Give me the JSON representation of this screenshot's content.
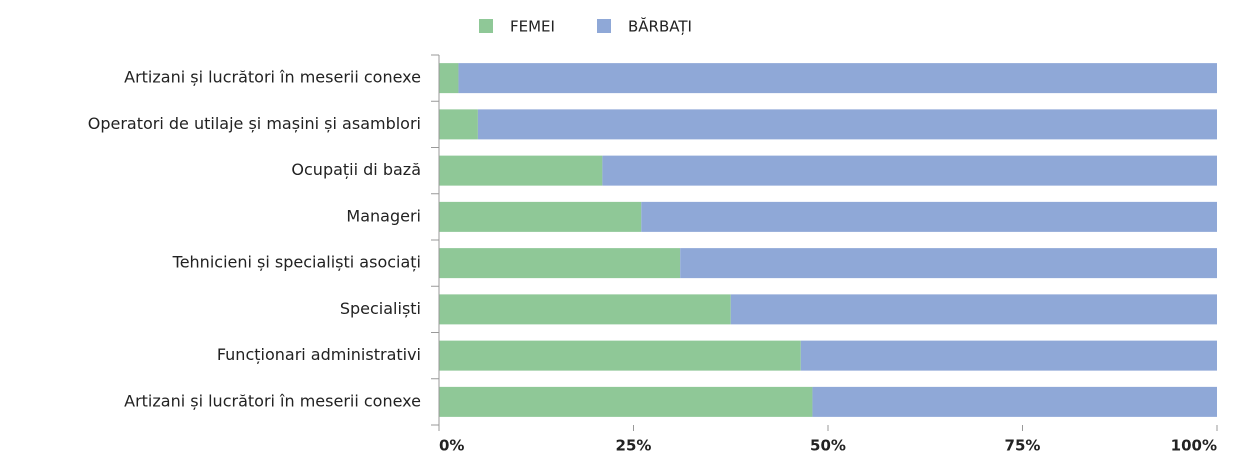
{
  "chart_data": {
    "type": "stacked_bar_horizontal",
    "categories": [
      "Artizani și lucrători în meserii conexe",
      "Operatori de utilaje și mașini și asamblori",
      "Ocupații di bază",
      "Manageri",
      "Tehnicieni și specialiști asociați",
      "Specialiști",
      "Funcționari administrativi",
      "Artizani și lucrători în meserii conexe"
    ],
    "series": [
      {
        "name": "FEMEI",
        "color": "#8fc897",
        "values": [
          2.5,
          5,
          21,
          26,
          31,
          37.5,
          46.5,
          48
        ]
      },
      {
        "name": "BĂRBAȚI",
        "color": "#8fa8d7",
        "values": [
          97.5,
          95,
          79,
          74,
          69,
          62.5,
          53.5,
          52
        ]
      }
    ],
    "xlim": [
      0,
      100
    ],
    "xticks": [
      {
        "value": 0,
        "label": "0%"
      },
      {
        "value": 25,
        "label": "25%"
      },
      {
        "value": 50,
        "label": "50%"
      },
      {
        "value": 75,
        "label": "75%"
      },
      {
        "value": 100,
        "label": "100%"
      }
    ],
    "legend": "top"
  }
}
